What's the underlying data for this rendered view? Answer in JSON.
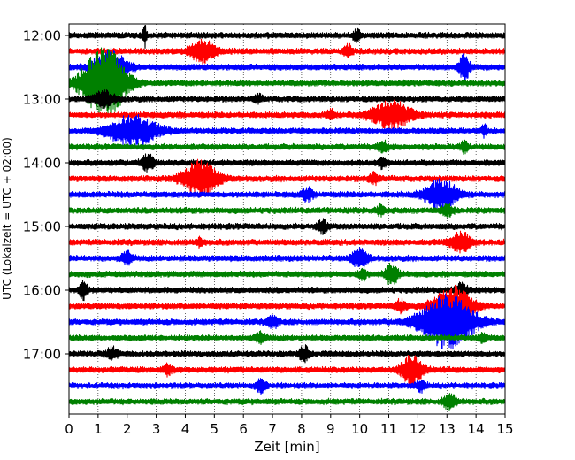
{
  "chart_data": {
    "type": "line",
    "subtype": "helicorder-seismogram",
    "xlabel": "Zeit  [min]",
    "ylabel": "UTC (Lokalzeit = UTC + 02:00)",
    "xlim": [
      0,
      15
    ],
    "x_ticks": [
      0,
      1,
      2,
      3,
      4,
      5,
      6,
      7,
      8,
      9,
      10,
      11,
      12,
      13,
      14,
      15
    ],
    "x_tick_labels": [
      "0",
      "1",
      "2",
      "3",
      "4",
      "5",
      "6",
      "7",
      "8",
      "9",
      "10",
      "11",
      "12",
      "13",
      "14",
      "15"
    ],
    "y_tick_labels": [
      "12:00",
      "13:00",
      "14:00",
      "15:00",
      "16:00",
      "17:00"
    ],
    "y_tick_rows": [
      0,
      4,
      8,
      12,
      16,
      20
    ],
    "row_count": 24,
    "row_minutes": 15,
    "start_time": "12:00",
    "line_colors": [
      "#000000",
      "#ff0000",
      "#0000ff",
      "#008000"
    ],
    "grid": "vertical dotted lines at each minute",
    "rows": [
      {
        "start": "12:00",
        "events": [
          {
            "t": 2.6,
            "amp": 0.9,
            "dur": 0.15
          },
          {
            "t": 9.9,
            "amp": 0.4,
            "dur": 0.3
          }
        ]
      },
      {
        "start": "12:15",
        "events": [
          {
            "t": 4.6,
            "amp": 0.8,
            "dur": 1.0
          },
          {
            "t": 9.6,
            "amp": 0.5,
            "dur": 0.3
          }
        ]
      },
      {
        "start": "12:30",
        "events": [
          {
            "t": 1.4,
            "amp": 1.5,
            "dur": 1.2
          },
          {
            "t": 13.6,
            "amp": 1.0,
            "dur": 0.4
          }
        ]
      },
      {
        "start": "12:45",
        "events": [
          {
            "t": 1.2,
            "amp": 3.0,
            "dur": 1.6
          }
        ]
      },
      {
        "start": "13:00",
        "events": [
          {
            "t": 1.2,
            "amp": 0.6,
            "dur": 0.8
          },
          {
            "t": 6.5,
            "amp": 0.3,
            "dur": 0.3
          }
        ]
      },
      {
        "start": "13:15",
        "events": [
          {
            "t": 11.1,
            "amp": 1.1,
            "dur": 1.5
          },
          {
            "t": 9.0,
            "amp": 0.4,
            "dur": 0.3
          }
        ]
      },
      {
        "start": "13:30",
        "events": [
          {
            "t": 2.2,
            "amp": 1.2,
            "dur": 1.8
          },
          {
            "t": 14.3,
            "amp": 0.5,
            "dur": 0.2
          }
        ]
      },
      {
        "start": "13:45",
        "events": [
          {
            "t": 10.8,
            "amp": 0.4,
            "dur": 0.4
          },
          {
            "t": 13.6,
            "amp": 0.4,
            "dur": 0.3
          }
        ]
      },
      {
        "start": "14:00",
        "events": [
          {
            "t": 2.7,
            "amp": 0.6,
            "dur": 0.5
          },
          {
            "t": 10.8,
            "amp": 0.4,
            "dur": 0.3
          }
        ]
      },
      {
        "start": "14:15",
        "events": [
          {
            "t": 4.5,
            "amp": 1.4,
            "dur": 1.3
          },
          {
            "t": 10.5,
            "amp": 0.4,
            "dur": 0.4
          }
        ]
      },
      {
        "start": "14:30",
        "events": [
          {
            "t": 12.8,
            "amp": 1.2,
            "dur": 1.2
          },
          {
            "t": 8.2,
            "amp": 0.5,
            "dur": 0.4
          }
        ]
      },
      {
        "start": "14:45",
        "events": [
          {
            "t": 13.0,
            "amp": 0.5,
            "dur": 0.4
          },
          {
            "t": 10.7,
            "amp": 0.4,
            "dur": 0.3
          }
        ]
      },
      {
        "start": "15:00",
        "events": [
          {
            "t": 8.7,
            "amp": 0.5,
            "dur": 0.4
          }
        ]
      },
      {
        "start": "15:15",
        "events": [
          {
            "t": 13.5,
            "amp": 0.8,
            "dur": 0.8
          },
          {
            "t": 4.5,
            "amp": 0.3,
            "dur": 0.3
          }
        ]
      },
      {
        "start": "15:30",
        "events": [
          {
            "t": 10.0,
            "amp": 0.7,
            "dur": 0.6
          },
          {
            "t": 2.0,
            "amp": 0.5,
            "dur": 0.4
          }
        ]
      },
      {
        "start": "15:45",
        "events": [
          {
            "t": 11.1,
            "amp": 0.8,
            "dur": 0.5
          },
          {
            "t": 10.1,
            "amp": 0.5,
            "dur": 0.3
          }
        ]
      },
      {
        "start": "16:00",
        "events": [
          {
            "t": 0.5,
            "amp": 0.7,
            "dur": 0.3
          },
          {
            "t": 13.5,
            "amp": 0.5,
            "dur": 0.5
          }
        ]
      },
      {
        "start": "16:15",
        "events": [
          {
            "t": 13.2,
            "amp": 1.6,
            "dur": 1.4
          },
          {
            "t": 11.4,
            "amp": 0.5,
            "dur": 0.4
          }
        ]
      },
      {
        "start": "16:30",
        "events": [
          {
            "t": 13.0,
            "amp": 2.2,
            "dur": 2.0
          },
          {
            "t": 7.0,
            "amp": 0.5,
            "dur": 0.4
          }
        ]
      },
      {
        "start": "16:45",
        "events": [
          {
            "t": 6.6,
            "amp": 0.4,
            "dur": 0.4
          },
          {
            "t": 14.2,
            "amp": 0.3,
            "dur": 0.3
          }
        ]
      },
      {
        "start": "17:00",
        "events": [
          {
            "t": 1.5,
            "amp": 0.5,
            "dur": 0.4
          },
          {
            "t": 8.1,
            "amp": 0.6,
            "dur": 0.4
          }
        ]
      },
      {
        "start": "17:15",
        "events": [
          {
            "t": 11.8,
            "amp": 1.2,
            "dur": 0.8
          },
          {
            "t": 3.4,
            "amp": 0.4,
            "dur": 0.3
          }
        ]
      },
      {
        "start": "17:30",
        "events": [
          {
            "t": 6.6,
            "amp": 0.5,
            "dur": 0.4
          },
          {
            "t": 12.1,
            "amp": 0.4,
            "dur": 0.4
          }
        ]
      },
      {
        "start": "17:45",
        "events": [
          {
            "t": 13.1,
            "amp": 0.6,
            "dur": 0.5
          }
        ]
      }
    ]
  }
}
